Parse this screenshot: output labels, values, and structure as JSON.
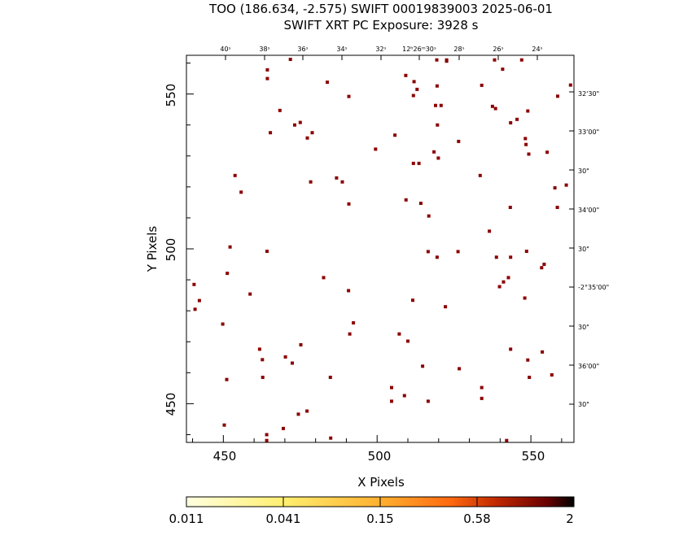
{
  "header": {
    "title_line1": "TOO (186.634, -2.575) SWIFT 00019839003 2025-06-01",
    "title_line2": "SWIFT XRT PC Exposure:       3928 s"
  },
  "chart_data": {
    "type": "scatter",
    "xlabel": "X Pixels",
    "ylabel": "Y Pixels",
    "xlim": [
      438,
      564
    ],
    "ylim": [
      437.5,
      562.5
    ],
    "x_ticks": [
      450,
      500,
      550
    ],
    "y_ticks": [
      450,
      500,
      550
    ],
    "ra_ticks": [
      "40ˢ",
      "38ˢ",
      "36ˢ",
      "34ˢ",
      "32ˢ",
      "12ʰ26ᵐ30ˢ",
      "28ˢ",
      "26ˢ",
      "24ˢ"
    ],
    "dec_ticks": [
      "32'30\"",
      "33'00\"",
      "30\"",
      "34'00\"",
      "30\"",
      "-2°35'00\"",
      "30\"",
      "36'00\"",
      "30\""
    ],
    "colorbar": {
      "labels": [
        "0.011",
        "0.041",
        "0.15",
        "0.58",
        "2"
      ],
      "colors": [
        "#ffffe0",
        "#ffef70",
        "#ffb030",
        "#ff6a10",
        "#c02800",
        "#6a0000",
        "#000000"
      ]
    },
    "marker_color": "#8b0000",
    "points": [
      [
        471.8,
        561.2
      ],
      [
        464.3,
        557.8
      ],
      [
        464.3,
        555
      ],
      [
        483.8,
        553.8
      ],
      [
        509.3,
        556
      ],
      [
        512,
        554
      ],
      [
        519.4,
        561
      ],
      [
        522.6,
        561
      ],
      [
        522.6,
        560.6
      ],
      [
        538.2,
        561
      ],
      [
        547,
        561
      ],
      [
        540.8,
        558
      ],
      [
        519.5,
        552.6
      ],
      [
        513,
        551.5
      ],
      [
        511.8,
        549.5
      ],
      [
        534,
        552.8
      ],
      [
        490.8,
        549.2
      ],
      [
        558.7,
        549.3
      ],
      [
        562.9,
        552.9
      ],
      [
        519,
        546.3
      ],
      [
        520.8,
        546.3
      ],
      [
        537.5,
        546
      ],
      [
        538.5,
        545.3
      ],
      [
        468.4,
        544.7
      ],
      [
        549,
        544.5
      ],
      [
        545.5,
        541.8
      ],
      [
        543.4,
        540.7
      ],
      [
        473.2,
        540
      ],
      [
        475,
        540.8
      ],
      [
        519.6,
        540
      ],
      [
        465.3,
        537.5
      ],
      [
        478.9,
        537.5
      ],
      [
        477.3,
        535.8
      ],
      [
        505.8,
        536.7
      ],
      [
        548.2,
        535.6
      ],
      [
        526.5,
        534.7
      ],
      [
        548.4,
        533.7
      ],
      [
        499.5,
        532.2
      ],
      [
        518.5,
        531.3
      ],
      [
        549.3,
        530.6
      ],
      [
        555.3,
        531.2
      ],
      [
        519.9,
        529.3
      ],
      [
        511.8,
        527.6
      ],
      [
        513.6,
        527.6
      ],
      [
        453.8,
        523.7
      ],
      [
        533.5,
        523.7
      ],
      [
        486.8,
        522.9
      ],
      [
        478.4,
        521.6
      ],
      [
        488.7,
        521.6
      ],
      [
        561.5,
        520.6
      ],
      [
        557.8,
        519.7
      ],
      [
        455.8,
        518.3
      ],
      [
        509.4,
        515.8
      ],
      [
        514.2,
        514.7
      ],
      [
        490.8,
        514.5
      ],
      [
        543.3,
        513.4
      ],
      [
        558.6,
        513.4
      ],
      [
        516.8,
        510.6
      ],
      [
        536.5,
        505.7
      ],
      [
        452.2,
        500.6
      ],
      [
        464.2,
        499.2
      ],
      [
        516.6,
        499.1
      ],
      [
        526.3,
        499.1
      ],
      [
        548.6,
        499.2
      ],
      [
        538.8,
        497.3
      ],
      [
        519.5,
        497.3
      ],
      [
        543.4,
        497.3
      ],
      [
        554.3,
        495
      ],
      [
        553.5,
        493.9
      ],
      [
        451.3,
        492.1
      ],
      [
        482.6,
        490.7
      ],
      [
        542.7,
        490.7
      ],
      [
        541.1,
        489.3
      ],
      [
        440.5,
        488.5
      ],
      [
        539.8,
        487.8
      ],
      [
        490.7,
        486.5
      ],
      [
        458.7,
        485.4
      ],
      [
        548,
        484.1
      ],
      [
        511.6,
        483.4
      ],
      [
        442.2,
        483.3
      ],
      [
        440.8,
        480.5
      ],
      [
        522.2,
        481.3
      ],
      [
        449.8,
        475.7
      ],
      [
        492.3,
        476.1
      ],
      [
        491.1,
        472.5
      ],
      [
        507.2,
        472.5
      ],
      [
        510,
        470.2
      ],
      [
        475.2,
        469
      ],
      [
        461.8,
        467.6
      ],
      [
        543.4,
        467.6
      ],
      [
        553.7,
        466.7
      ],
      [
        470.2,
        465.1
      ],
      [
        462.7,
        464.2
      ],
      [
        549,
        464.1
      ],
      [
        472.4,
        463.1
      ],
      [
        514.8,
        462.1
      ],
      [
        526.7,
        461.3
      ],
      [
        556.8,
        459.3
      ],
      [
        451.1,
        457.8
      ],
      [
        462.8,
        458.5
      ],
      [
        484.8,
        458.5
      ],
      [
        549.5,
        458.5
      ],
      [
        534,
        455.2
      ],
      [
        504.7,
        455.2
      ],
      [
        508.9,
        452.6
      ],
      [
        534,
        451.7
      ],
      [
        504.7,
        450.8
      ],
      [
        516.6,
        450.8
      ],
      [
        477.2,
        447.6
      ],
      [
        474.4,
        446.6
      ],
      [
        450.3,
        443.1
      ],
      [
        469.5,
        442
      ],
      [
        464.1,
        440
      ],
      [
        484.9,
        438.9
      ],
      [
        464.1,
        438.1
      ],
      [
        542.1,
        438.1
      ]
    ]
  }
}
